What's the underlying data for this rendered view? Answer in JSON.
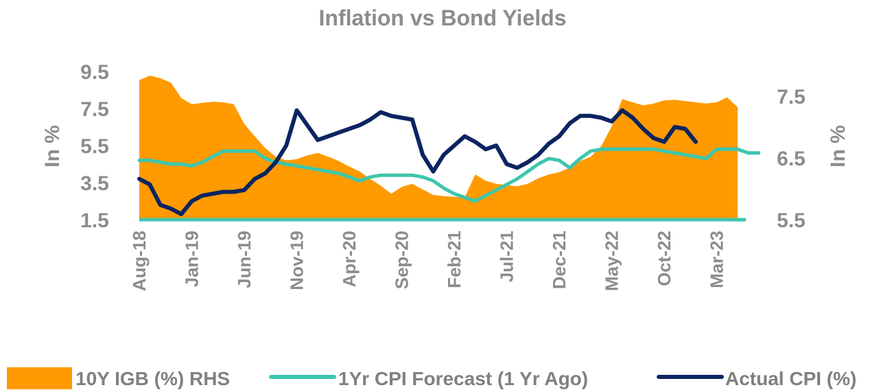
{
  "chart_data": {
    "type": "area+line",
    "title": "Inflation vs Bond Yields",
    "ylabel_left": "In %",
    "ylabel_right": "In %",
    "left_ticks": [
      "9.5",
      "7.5",
      "5.5",
      "3.5",
      "1.5"
    ],
    "left_tick_values": [
      9.5,
      7.5,
      5.5,
      3.5,
      1.5
    ],
    "right_ticks": [
      "7.5",
      "6.5",
      "5.5"
    ],
    "right_tick_values": [
      7.5,
      6.5,
      5.5
    ],
    "ylim_left": [
      1.5,
      9.5
    ],
    "ylim_right": [
      5.5,
      7.9
    ],
    "x_tick_labels": [
      "Aug-18",
      "Jan-19",
      "Jun-19",
      "Nov-19",
      "Apr-20",
      "Sep-20",
      "Feb-21",
      "Jul-21",
      "Dec-21",
      "May-22",
      "Oct-22",
      "Mar-23"
    ],
    "x_tick_index": [
      0,
      5,
      10,
      15,
      20,
      25,
      30,
      35,
      40,
      45,
      50,
      55
    ],
    "n_points": 60,
    "legend_position": "bottom",
    "series": [
      {
        "name": "10Y IGB (%) RHS",
        "type": "area",
        "axis": "right",
        "color": "#ff9a00",
        "start_index": 0,
        "values": [
          7.76,
          7.83,
          7.79,
          7.72,
          7.47,
          7.37,
          7.39,
          7.41,
          7.4,
          7.37,
          7.05,
          6.85,
          6.66,
          6.52,
          6.46,
          6.48,
          6.54,
          6.58,
          6.52,
          6.45,
          6.36,
          6.28,
          6.16,
          6.05,
          5.92,
          6.03,
          6.08,
          5.99,
          5.9,
          5.88,
          5.87,
          5.86,
          6.23,
          6.13,
          6.08,
          6.06,
          6.04,
          6.08,
          6.17,
          6.23,
          6.27,
          6.34,
          6.45,
          6.52,
          6.69,
          7.01,
          7.45,
          7.4,
          7.35,
          7.38,
          7.43,
          7.44,
          7.42,
          7.4,
          7.38,
          7.4,
          7.48,
          7.32
        ]
      },
      {
        "name": "1Yr CPI Forecast (1 Yr Ago)",
        "type": "line",
        "axis": "left",
        "color": "#3dc6ad",
        "start_index": 0,
        "values": [
          4.7,
          4.7,
          4.6,
          4.5,
          4.5,
          4.4,
          4.6,
          4.9,
          5.2,
          5.2,
          5.2,
          5.2,
          4.8,
          4.6,
          4.5,
          4.4,
          4.3,
          4.2,
          4.1,
          4.0,
          3.8,
          3.6,
          3.8,
          3.9,
          3.9,
          3.9,
          3.9,
          3.8,
          3.6,
          3.2,
          2.9,
          2.7,
          2.5,
          2.8,
          3.1,
          3.4,
          3.7,
          4.1,
          4.5,
          4.8,
          4.7,
          4.3,
          4.8,
          5.2,
          5.3,
          5.3,
          5.3,
          5.3,
          5.3,
          5.3,
          5.2,
          5.1,
          5.0,
          4.9,
          4.8,
          5.3,
          5.3,
          5.3,
          5.1,
          5.1
        ]
      },
      {
        "name": "Actual CPI (%)",
        "type": "line",
        "axis": "left",
        "color": "#0c2461",
        "start_index": 0,
        "values": [
          3.7,
          3.4,
          2.3,
          2.1,
          1.8,
          2.5,
          2.8,
          2.9,
          3.0,
          3.0,
          3.1,
          3.7,
          4.0,
          4.6,
          5.5,
          7.4,
          6.6,
          5.8,
          6.0,
          6.2,
          6.4,
          6.6,
          6.9,
          7.3,
          7.1,
          7.0,
          6.9,
          5.0,
          4.1,
          5.0,
          5.5,
          6.0,
          5.7,
          5.3,
          5.5,
          4.5,
          4.3,
          4.6,
          5.0,
          5.6,
          6.0,
          6.7,
          7.1,
          7.1,
          7.0,
          6.8,
          7.4,
          7.0,
          6.4,
          5.9,
          5.7,
          6.5,
          6.4,
          5.7
        ]
      }
    ]
  },
  "legend": {
    "items": [
      {
        "label": "10Y IGB (%) RHS"
      },
      {
        "label": "1Yr CPI Forecast (1 Yr Ago)"
      },
      {
        "label": "Actual CPI (%)"
      }
    ]
  }
}
